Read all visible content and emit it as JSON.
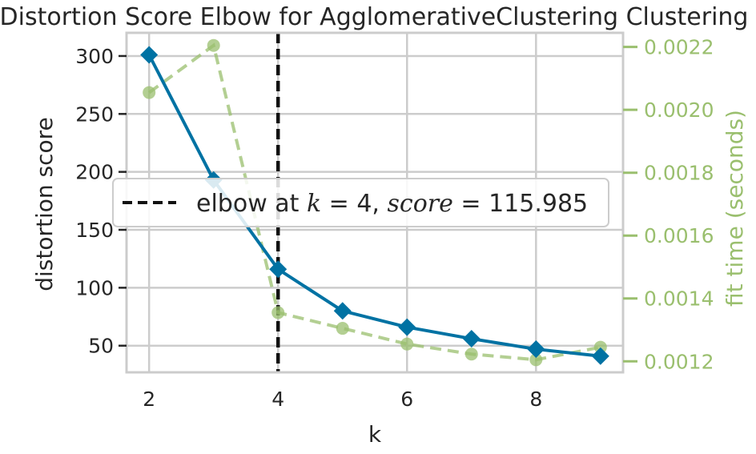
{
  "chart_data": {
    "type": "line",
    "title": "Distortion Score Elbow for AgglomerativeClustering Clustering",
    "xlabel": "k",
    "ylabel": "distortion score",
    "y2label": "fit time (seconds)",
    "xlim": [
      1.65,
      9.35
    ],
    "ylim": [
      27,
      320
    ],
    "y2lim": [
      0.001165,
      0.002245
    ],
    "xticks": [
      "2",
      "4",
      "6",
      "8"
    ],
    "xtick_values": [
      2,
      4,
      6,
      8
    ],
    "yticks": [
      "50",
      "100",
      "150",
      "200",
      "250",
      "300"
    ],
    "ytick_values": [
      50,
      100,
      150,
      200,
      250,
      300
    ],
    "y2ticks": [
      "0.0012",
      "0.0014",
      "0.0016",
      "0.0018",
      "0.0020",
      "0.0022"
    ],
    "y2tick_values": [
      0.0012,
      0.0014,
      0.0016,
      0.0018,
      0.002,
      0.0022
    ],
    "grid": true,
    "series": [
      {
        "axis": "left",
        "color": "#0072a3",
        "marker": "diamond",
        "x": [
          2,
          3,
          4,
          5,
          6,
          7,
          8,
          9
        ],
        "y": [
          301,
          193,
          116,
          80,
          66,
          56,
          47,
          41
        ]
      },
      {
        "axis": "right",
        "color": "#9abf6e",
        "marker": "circle",
        "dashed": true,
        "x": [
          2,
          3,
          4,
          5,
          6,
          7,
          8,
          9
        ],
        "y": [
          0.002055,
          0.002205,
          0.001355,
          0.001305,
          0.001255,
          0.001223,
          0.001205,
          0.001245
        ]
      }
    ],
    "elbow": {
      "k": 4,
      "score": "115.985",
      "legend_prefix": "elbow at ",
      "legend_k": "k",
      "legend_eq1": " = 4, ",
      "legend_score": "score",
      "legend_eq2": " = 115.985",
      "color": "#111111"
    },
    "legend_placement": "center-left"
  }
}
